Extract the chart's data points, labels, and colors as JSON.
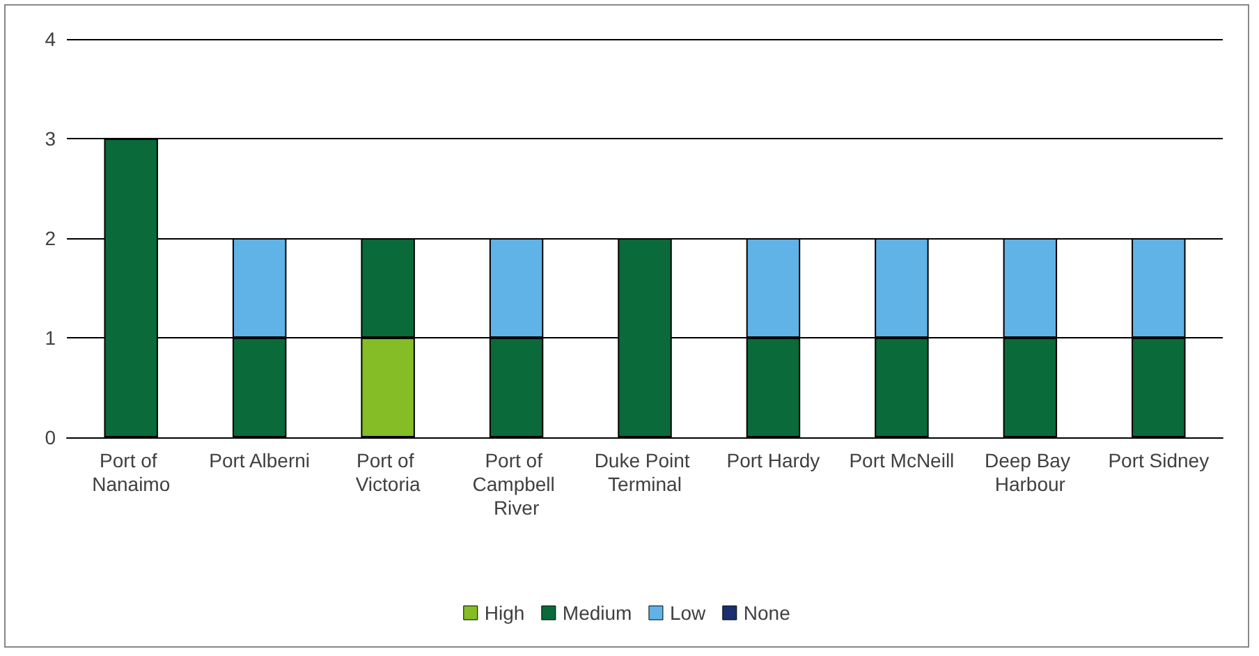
{
  "chart_data": {
    "type": "bar",
    "stacked": true,
    "categories": [
      "Port of Nanaimo",
      "Port Alberni",
      "Port of Victoria",
      "Port of Campbell River",
      "Duke Point Terminal",
      "Port Hardy",
      "Port McNeill",
      "Deep Bay Harbour",
      "Port Sidney"
    ],
    "series": [
      {
        "name": "High",
        "color": "#84bd25",
        "values": [
          null,
          null,
          1,
          null,
          null,
          null,
          null,
          null,
          null
        ]
      },
      {
        "name": "Medium",
        "color": "#0a6a3a",
        "values": [
          3,
          1,
          1,
          1,
          2,
          1,
          1,
          1,
          1
        ]
      },
      {
        "name": "Low",
        "color": "#5fb3e6",
        "values": [
          null,
          1,
          null,
          1,
          null,
          1,
          1,
          1,
          1
        ]
      },
      {
        "name": "None",
        "color": "#1b2f6e",
        "values": [
          null,
          null,
          null,
          null,
          null,
          null,
          null,
          null,
          null
        ]
      }
    ],
    "ylim": [
      0,
      4
    ],
    "yticks": [
      0,
      1,
      2,
      3,
      4
    ],
    "grid": "y",
    "legend": "bottom"
  }
}
